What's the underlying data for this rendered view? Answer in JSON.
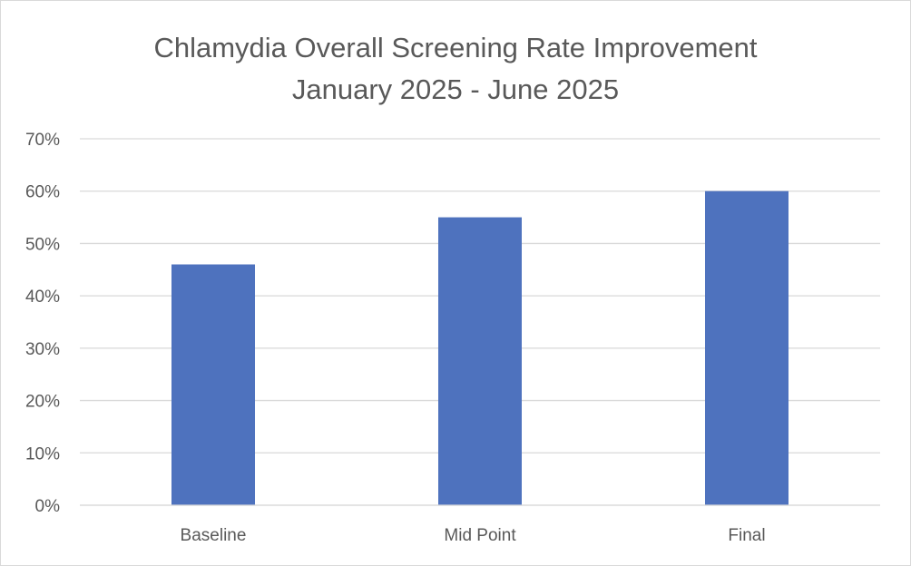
{
  "chart_data": {
    "type": "bar",
    "title_lines": [
      "Chlamydia Overall Screening Rate Improvement",
      "January 2025 - June 2025"
    ],
    "categories": [
      "Baseline",
      "Mid Point",
      "Final"
    ],
    "values": [
      0.46,
      0.55,
      0.6
    ],
    "ylim": [
      0,
      0.7
    ],
    "y_ticks": [
      0,
      0.1,
      0.2,
      0.3,
      0.4,
      0.5,
      0.6,
      0.7
    ],
    "y_tick_labels": [
      "0%",
      "10%",
      "20%",
      "30%",
      "40%",
      "50%",
      "60%",
      "70%"
    ],
    "xlabel": "",
    "ylabel": "",
    "grid": true,
    "legend": "none",
    "colors": {
      "bar": "#4e72be",
      "grid": "#d9d9d9",
      "text": "#595959"
    }
  }
}
